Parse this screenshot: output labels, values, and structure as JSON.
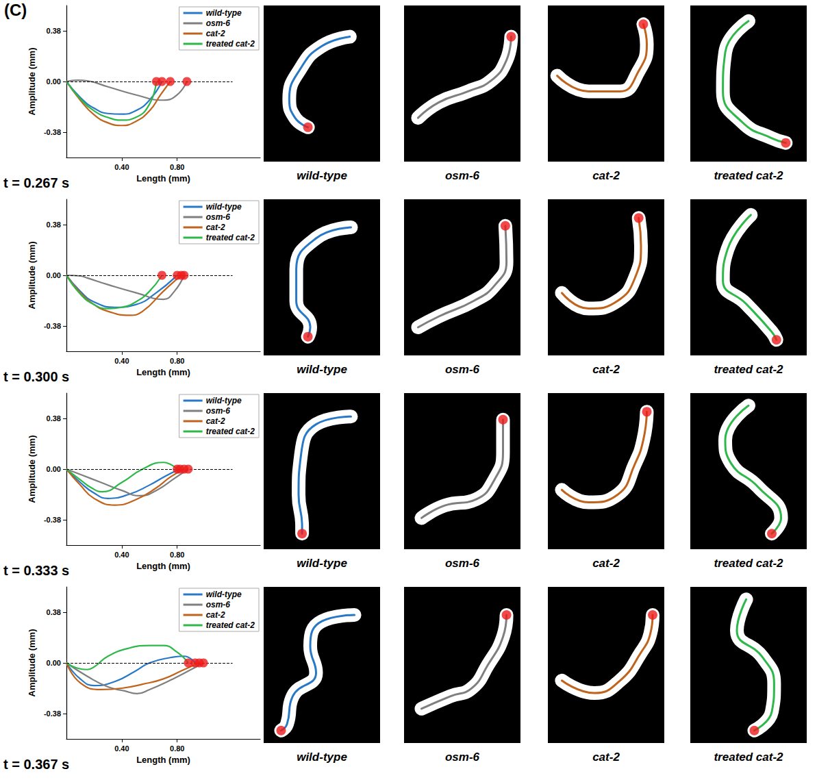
{
  "label": "(C)",
  "chart_data": [
    {
      "type": "line",
      "title": "t = 0.267 s",
      "x_label": "Length (mm)",
      "y_label": "Amplitude (mm)",
      "xlim": [
        0,
        1.4
      ],
      "xticks": [
        {
          "value": 0.4,
          "label": "0.40"
        },
        {
          "value": 0.8,
          "label": "0.80"
        }
      ],
      "ylim": [
        -0.57,
        0.57
      ],
      "yticks": [
        {
          "value": -0.38,
          "label": "-0.38"
        },
        {
          "value": 0,
          "label": "0.00"
        },
        0.38
      ],
      "legend": "top-right",
      "reference_line": {
        "y": 0,
        "x": [
          0,
          1.2
        ]
      },
      "end_marker": {
        "color": "#ee1c1c",
        "marker": "circle"
      },
      "series": [
        {
          "name": "wild-type",
          "color": "#2878c8",
          "x": [
            0,
            0.1,
            0.2,
            0.3,
            0.4,
            0.5,
            0.6,
            0.69
          ],
          "values": [
            0,
            -0.12,
            -0.2,
            -0.24,
            -0.245,
            -0.22,
            -0.14,
            0
          ]
        },
        {
          "name": "osm-6",
          "color": "#7f7f7f",
          "x": [
            0,
            0.08,
            0.15,
            0.3,
            0.5,
            0.7,
            0.8,
            0.87
          ],
          "values": [
            0,
            0.01,
            0.005,
            -0.04,
            -0.1,
            -0.14,
            -0.1,
            0
          ]
        },
        {
          "name": "cat-2",
          "color": "#c0631c",
          "x": [
            0,
            0.1,
            0.2,
            0.3,
            0.4,
            0.5,
            0.6,
            0.68,
            0.75
          ],
          "values": [
            0,
            -0.14,
            -0.25,
            -0.31,
            -0.33,
            -0.3,
            -0.22,
            -0.1,
            0
          ]
        },
        {
          "name": "treated cat-2",
          "color": "#2eb84a",
          "x": [
            0,
            0.1,
            0.2,
            0.3,
            0.4,
            0.5,
            0.6,
            0.65
          ],
          "values": [
            0,
            -0.13,
            -0.22,
            -0.27,
            -0.29,
            -0.27,
            -0.17,
            0
          ]
        }
      ],
      "image_xlim": [
        0,
        100
      ],
      "image_ylim": [
        0,
        100
      ],
      "worms": [
        {
          "name": "wild-type",
          "color": "#2878c8",
          "x": [
            74,
            50,
            32,
            22,
            27,
            38
          ],
          "y": [
            80,
            74,
            60,
            40,
            28,
            22
          ]
        },
        {
          "name": "osm-6",
          "color": "#7f7f7f",
          "x": [
            12,
            30,
            55,
            75,
            88,
            92
          ],
          "y": [
            28,
            38,
            45,
            52,
            65,
            80
          ]
        },
        {
          "name": "cat-2",
          "color": "#c0631c",
          "x": [
            8,
            35,
            62,
            78,
            85,
            82
          ],
          "y": [
            55,
            45,
            45,
            58,
            75,
            88
          ]
        },
        {
          "name": "treated cat-2",
          "color": "#2eb84a",
          "x": [
            50,
            30,
            28,
            45,
            70,
            82
          ],
          "y": [
            90,
            70,
            45,
            25,
            15,
            12
          ]
        }
      ]
    },
    {
      "type": "line",
      "title": "t = 0.300 s",
      "x_label": "Length (mm)",
      "y_label": "Amplitude (mm)",
      "xlim": [
        0,
        1.4
      ],
      "xticks": [
        {
          "value": 0.4,
          "label": "0.40"
        },
        {
          "value": 0.8,
          "label": "0.80"
        }
      ],
      "ylim": [
        -0.57,
        0.57
      ],
      "yticks": [
        {
          "value": -0.38,
          "label": "-0.38"
        },
        {
          "value": 0,
          "label": "0.00"
        },
        0.38
      ],
      "legend": "top-right",
      "reference_line": {
        "y": 0,
        "x": [
          0,
          1.2
        ]
      },
      "end_marker": {
        "color": "#ee1c1c",
        "marker": "circle"
      },
      "series": [
        {
          "name": "wild-type",
          "color": "#2878c8",
          "x": [
            0,
            0.1,
            0.2,
            0.35,
            0.5,
            0.65,
            0.8
          ],
          "values": [
            0,
            -0.12,
            -0.2,
            -0.24,
            -0.22,
            -0.13,
            0
          ]
        },
        {
          "name": "osm-6",
          "color": "#7f7f7f",
          "x": [
            0,
            0.1,
            0.15,
            0.3,
            0.5,
            0.7,
            0.78,
            0.85
          ],
          "values": [
            0,
            -0.005,
            -0.02,
            -0.07,
            -0.13,
            -0.18,
            -0.12,
            0
          ]
        },
        {
          "name": "cat-2",
          "color": "#c0631c",
          "x": [
            0,
            0.1,
            0.2,
            0.3,
            0.45,
            0.55,
            0.7,
            0.83
          ],
          "values": [
            0,
            -0.13,
            -0.22,
            -0.27,
            -0.3,
            -0.27,
            -0.12,
            0
          ]
        },
        {
          "name": "treated cat-2",
          "color": "#2eb84a",
          "x": [
            0,
            0.1,
            0.2,
            0.3,
            0.4,
            0.5,
            0.6,
            0.69
          ],
          "values": [
            0,
            -0.14,
            -0.22,
            -0.25,
            -0.24,
            -0.2,
            -0.12,
            0
          ]
        }
      ],
      "image_xlim": [
        0,
        100
      ],
      "image_ylim": [
        0,
        100
      ],
      "worms": [
        {
          "name": "wild-type",
          "color": "#2878c8",
          "x": [
            75,
            45,
            28,
            28,
            40,
            38
          ],
          "y": [
            82,
            75,
            55,
            35,
            18,
            12
          ]
        },
        {
          "name": "osm-6",
          "color": "#7f7f7f",
          "x": [
            12,
            30,
            60,
            78,
            88,
            87
          ],
          "y": [
            18,
            25,
            35,
            45,
            60,
            83
          ]
        },
        {
          "name": "cat-2",
          "color": "#c0631c",
          "x": [
            12,
            35,
            60,
            75,
            80,
            78
          ],
          "y": [
            40,
            30,
            35,
            50,
            70,
            88
          ]
        },
        {
          "name": "treated cat-2",
          "color": "#2eb84a",
          "x": [
            52,
            32,
            28,
            48,
            70,
            74
          ],
          "y": [
            90,
            68,
            48,
            33,
            15,
            10
          ]
        }
      ]
    },
    {
      "type": "line",
      "title": "t = 0.333 s",
      "x_label": "Length (mm)",
      "y_label": "Amplitude (mm)",
      "xlim": [
        0,
        1.4
      ],
      "xticks": [
        {
          "value": 0.4,
          "label": "0.40"
        },
        {
          "value": 0.8,
          "label": "0.80"
        }
      ],
      "ylim": [
        -0.57,
        0.57
      ],
      "yticks": [
        {
          "value": -0.38,
          "label": "-0.38"
        },
        {
          "value": 0,
          "label": "0.00"
        },
        0.38
      ],
      "legend": "top-right",
      "reference_line": {
        "y": 0,
        "x": [
          0,
          1.2
        ]
      },
      "end_marker": {
        "color": "#ee1c1c",
        "marker": "circle"
      },
      "series": [
        {
          "name": "wild-type",
          "color": "#2878c8",
          "x": [
            0,
            0.1,
            0.2,
            0.3,
            0.45,
            0.6,
            0.72,
            0.82
          ],
          "values": [
            0,
            -0.1,
            -0.18,
            -0.22,
            -0.19,
            -0.12,
            -0.05,
            0
          ]
        },
        {
          "name": "osm-6",
          "color": "#7f7f7f",
          "x": [
            0,
            0.1,
            0.25,
            0.4,
            0.53,
            0.65,
            0.78,
            0.88
          ],
          "values": [
            0,
            -0.04,
            -0.1,
            -0.16,
            -0.2,
            -0.16,
            -0.07,
            0
          ]
        },
        {
          "name": "cat-2",
          "color": "#c0631c",
          "x": [
            0,
            0.1,
            0.2,
            0.35,
            0.5,
            0.65,
            0.75,
            0.85
          ],
          "values": [
            0,
            -0.12,
            -0.22,
            -0.27,
            -0.23,
            -0.14,
            -0.06,
            0
          ]
        },
        {
          "name": "treated cat-2",
          "color": "#2eb84a",
          "x": [
            0,
            0.1,
            0.18,
            0.26,
            0.4,
            0.55,
            0.7,
            0.8
          ],
          "values": [
            0,
            -0.08,
            -0.14,
            -0.17,
            -0.1,
            0,
            0.05,
            0
          ]
        }
      ],
      "image_xlim": [
        0,
        100
      ],
      "image_ylim": [
        0,
        100
      ],
      "worms": [
        {
          "name": "wild-type",
          "color": "#2878c8",
          "x": [
            75,
            45,
            32,
            30,
            33,
            33
          ],
          "y": [
            85,
            80,
            60,
            35,
            15,
            10
          ]
        },
        {
          "name": "osm-6",
          "color": "#7f7f7f",
          "x": [
            15,
            35,
            62,
            78,
            85,
            85
          ],
          "y": [
            20,
            28,
            32,
            45,
            62,
            83
          ]
        },
        {
          "name": "cat-2",
          "color": "#c0631c",
          "x": [
            12,
            35,
            60,
            75,
            82,
            85
          ],
          "y": [
            38,
            30,
            35,
            55,
            70,
            88
          ]
        },
        {
          "name": "treated cat-2",
          "color": "#2eb84a",
          "x": [
            50,
            30,
            35,
            58,
            78,
            70
          ],
          "y": [
            92,
            70,
            55,
            40,
            20,
            10
          ]
        }
      ]
    },
    {
      "type": "line",
      "title": "t = 0.367 s",
      "x_label": "Length (mm)",
      "y_label": "Amplitude (mm)",
      "xlim": [
        0,
        1.4
      ],
      "xticks": [
        {
          "value": 0.4,
          "label": "0.40"
        },
        {
          "value": 0.8,
          "label": "0.80"
        }
      ],
      "ylim": [
        -0.57,
        0.57
      ],
      "yticks": [
        {
          "value": -0.38,
          "label": "-0.38"
        },
        {
          "value": 0,
          "label": "0.00"
        },
        0.38
      ],
      "legend": "top-right",
      "reference_line": {
        "y": 0,
        "x": [
          0,
          1.2
        ]
      },
      "end_marker": {
        "color": "#ee1c1c",
        "marker": "circle"
      },
      "series": [
        {
          "name": "wild-type",
          "color": "#2878c8",
          "x": [
            0,
            0.1,
            0.2,
            0.35,
            0.5,
            0.6,
            0.75,
            0.85,
            0.93
          ],
          "values": [
            0,
            -0.12,
            -0.17,
            -0.14,
            -0.06,
            0,
            0.04,
            0.05,
            0
          ]
        },
        {
          "name": "osm-6",
          "color": "#7f7f7f",
          "x": [
            0,
            0.15,
            0.3,
            0.42,
            0.51,
            0.6,
            0.75,
            0.9,
            0.99
          ],
          "values": [
            0,
            -0.1,
            -0.18,
            -0.21,
            -0.23,
            -0.2,
            -0.13,
            -0.05,
            0
          ]
        },
        {
          "name": "cat-2",
          "color": "#c0631c",
          "x": [
            0,
            0.1,
            0.25,
            0.4,
            0.55,
            0.7,
            0.85,
            0.96
          ],
          "values": [
            0,
            -0.15,
            -0.2,
            -0.19,
            -0.16,
            -0.12,
            -0.05,
            0
          ]
        },
        {
          "name": "treated cat-2",
          "color": "#2eb84a",
          "x": [
            0,
            0.08,
            0.15,
            0.2,
            0.3,
            0.45,
            0.6,
            0.7,
            0.8,
            0.88
          ],
          "values": [
            0,
            -0.04,
            -0.05,
            -0.03,
            0.05,
            0.11,
            0.13,
            0.13,
            0.08,
            0
          ]
        }
      ],
      "image_xlim": [
        0,
        100
      ],
      "image_ylim": [
        0,
        100
      ],
      "worms": [
        {
          "name": "wild-type",
          "color": "#2878c8",
          "x": [
            78,
            50,
            40,
            45,
            25,
            20,
            15
          ],
          "y": [
            82,
            78,
            62,
            45,
            30,
            12,
            8
          ]
        },
        {
          "name": "osm-6",
          "color": "#7f7f7f",
          "x": [
            15,
            40,
            58,
            72,
            85,
            88
          ],
          "y": [
            22,
            30,
            35,
            50,
            68,
            82
          ]
        },
        {
          "name": "cat-2",
          "color": "#c0631c",
          "x": [
            12,
            40,
            62,
            80,
            88,
            90
          ],
          "y": [
            40,
            32,
            40,
            58,
            70,
            82
          ]
        },
        {
          "name": "treated cat-2",
          "color": "#2eb84a",
          "x": [
            48,
            40,
            62,
            72,
            70,
            55
          ],
          "y": [
            92,
            72,
            55,
            38,
            20,
            8
          ]
        }
      ]
    }
  ]
}
